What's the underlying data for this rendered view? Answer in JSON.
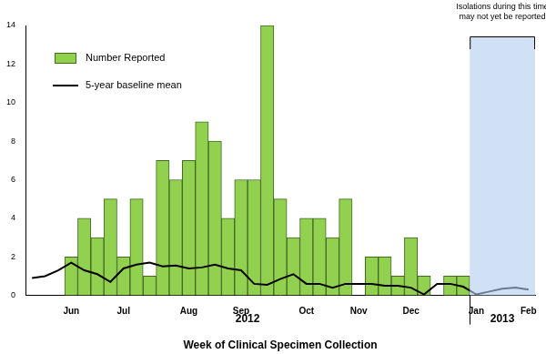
{
  "chart_data": {
    "type": "bar",
    "x_label": "Week of Clinical Specimen Collection",
    "categories": [
      null,
      null,
      null,
      "Jun",
      null,
      null,
      null,
      "Jul",
      null,
      null,
      null,
      null,
      "Aug",
      null,
      null,
      null,
      "Sep",
      null,
      null,
      null,
      null,
      "Oct",
      null,
      null,
      null,
      "Nov",
      null,
      null,
      null,
      "Dec",
      null,
      null,
      null,
      null,
      "Jan",
      null,
      null,
      null,
      "Feb"
    ],
    "series": [
      {
        "name": "Number Reported",
        "type": "bar",
        "color": "#92d050",
        "values": [
          null,
          null,
          null,
          2,
          4,
          3,
          5,
          2,
          5,
          1,
          7,
          6,
          7,
          9,
          8,
          4,
          6,
          6,
          14,
          5,
          3,
          4,
          4,
          3,
          5,
          0,
          2,
          2,
          1,
          3,
          1,
          0,
          1,
          1,
          null,
          null,
          null,
          null,
          null
        ]
      },
      {
        "name": "5-year baseline mean",
        "type": "line",
        "color": "#000000",
        "values": [
          0.9,
          1.0,
          1.3,
          1.7,
          1.3,
          1.1,
          0.7,
          1.4,
          1.6,
          1.7,
          1.5,
          1.55,
          1.4,
          1.45,
          1.6,
          1.4,
          1.3,
          0.6,
          0.55,
          0.85,
          1.1,
          0.6,
          0.6,
          0.4,
          0.6,
          0.6,
          0.6,
          0.5,
          0.5,
          0.4,
          0.05,
          0.6,
          0.6,
          0.45,
          0.05,
          0.2,
          0.35,
          0.4,
          0.3
        ]
      }
    ],
    "ylim": [
      0,
      14
    ],
    "yticks": [
      0,
      2,
      4,
      6,
      8,
      10,
      12,
      14
    ],
    "grid": false,
    "legend": "upper left",
    "x_groups": [
      {
        "label": "2012",
        "from": 0,
        "to": 33
      },
      {
        "label": "2013",
        "from": 34,
        "to": 38
      }
    ],
    "annotations": [
      {
        "text": [
          "Isolations during this time",
          "may not yet be reported"
        ],
        "from": 34,
        "to": 38
      }
    ]
  }
}
